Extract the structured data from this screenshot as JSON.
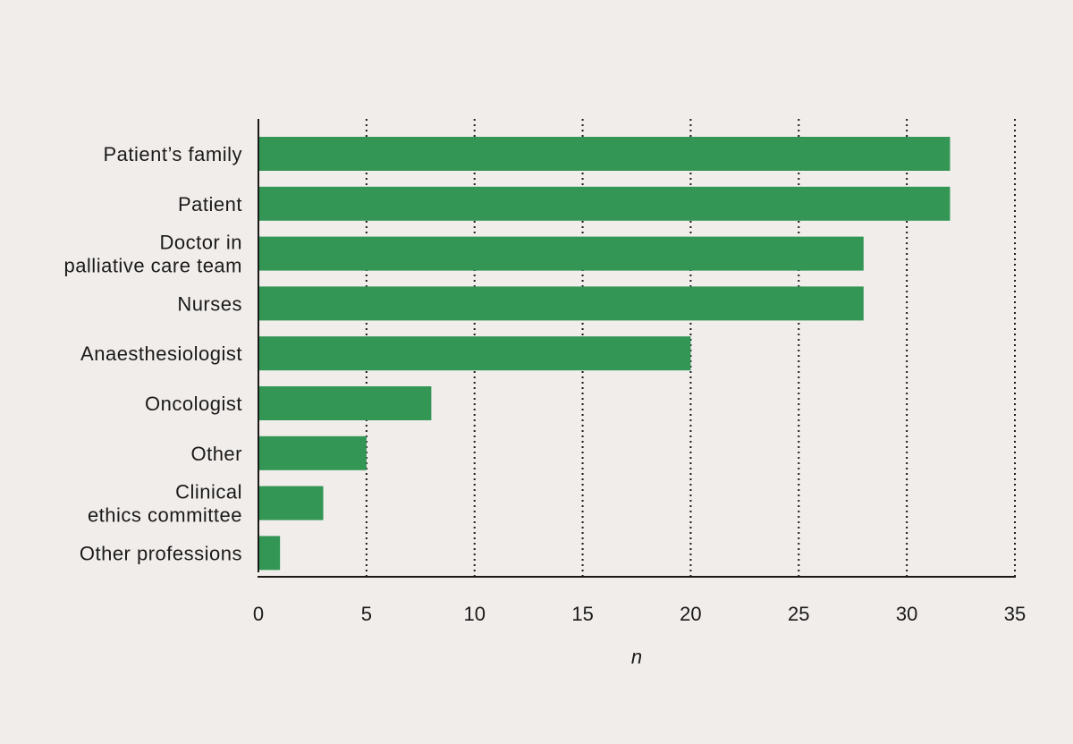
{
  "chart_data": {
    "type": "bar",
    "orientation": "horizontal",
    "categories": [
      [
        "Patient’s family"
      ],
      [
        "Patient"
      ],
      [
        "Doctor in",
        "palliative care team"
      ],
      [
        "Nurses"
      ],
      [
        "Anaesthesiologist"
      ],
      [
        "Oncologist"
      ],
      [
        "Other"
      ],
      [
        "Clinical",
        "ethics committee"
      ],
      [
        "Other professions"
      ]
    ],
    "values": [
      32,
      32,
      28,
      28,
      20,
      8,
      5,
      3,
      1
    ],
    "xlabel": "n",
    "ylabel": "",
    "xlim": [
      0,
      35
    ],
    "xticks": [
      "0",
      "5",
      "10",
      "15",
      "20",
      "25",
      "30",
      "35"
    ],
    "grid": "vertical dotted",
    "colors": {
      "bar": "#339655",
      "background": "#f1edeb",
      "axis": "#1a1a1a"
    }
  }
}
